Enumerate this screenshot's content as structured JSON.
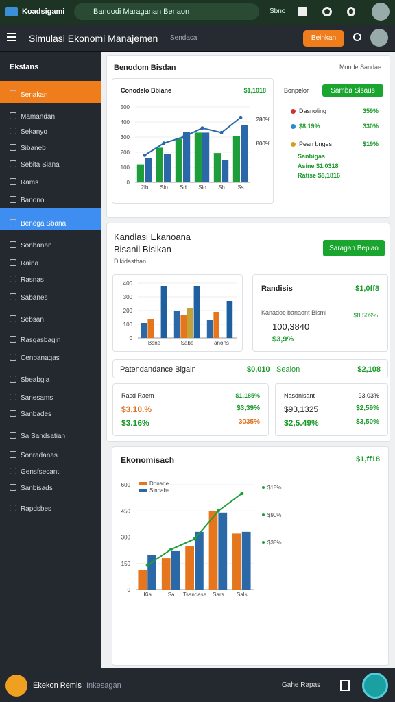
{
  "topbar": {
    "app": "Koadsigami",
    "search": "Bandodi Maraganan Benaon",
    "menu": "Sbno"
  },
  "header": {
    "title": "Simulasi Ekonomi Manajemen",
    "subtitle": "Sendaca",
    "button": "Beinkan"
  },
  "sidebar": {
    "section": "Ekstans",
    "items": [
      "Senakan",
      "Mamandan",
      "Sekanyo",
      "Sibaneb",
      "Sebita Siana",
      "Rams",
      "Banono",
      "Benega Sbana",
      "Sonbanan",
      "Raina",
      "Rasnas",
      "Sabanes",
      "Sebsan",
      "Rasgasbagin",
      "Cenbanagas",
      "Sbeabgia",
      "Sanesams",
      "Sanbades",
      "Sa Sandsatian",
      "Sonradanas",
      "Gensfsecant",
      "Sanbisads",
      "Rapdsbes"
    ]
  },
  "overview": {
    "title": "Benodom Bisdan",
    "link": "Monde Sandae",
    "chart": {
      "title": "Conodelo Bbiane",
      "value": "$1,1018",
      "ylim": [
        0,
        500
      ],
      "yticks": [
        0,
        100,
        200,
        300,
        400,
        500
      ],
      "categories": [
        "2lb",
        "Sio",
        "Sd",
        "Sio",
        "Sh",
        "Ss"
      ],
      "series": [
        {
          "color": "#1e9e3a",
          "values": [
            120,
            230,
            290,
            330,
            195,
            305
          ]
        },
        {
          "color": "#2a68a8",
          "values": [
            160,
            190,
            335,
            330,
            150,
            380
          ]
        }
      ],
      "line": {
        "color": "#2a68a8",
        "values": [
          180,
          260,
          300,
          360,
          330,
          430
        ]
      },
      "annotations": [
        "280%",
        "800%"
      ]
    },
    "panel": {
      "title": "Bonpelor",
      "button": "Samba Sisaus",
      "rows": [
        [
          "Dasnoling",
          "359%"
        ],
        [
          "$8,19%",
          "330%"
        ],
        [
          "Pean bnges",
          "$19%"
        ]
      ],
      "notes": [
        "Sanbigas",
        "Asine $1,0318",
        "Ratise $8,1816"
      ]
    }
  },
  "analysis": {
    "title": "Kandlasi Ekanoana",
    "subtitle": "Bisanil Bisikan",
    "caption": "Dikidasthan",
    "button": "Saragan Bepiao",
    "chart": {
      "ylim": [
        0,
        400
      ],
      "yticks": [
        0,
        100,
        200,
        300,
        400
      ],
      "categories": [
        "Bsne",
        "Sabe",
        "Tanons"
      ],
      "series": [
        {
          "color": "#2a68a8",
          "values": [
            110,
            200,
            130
          ]
        },
        {
          "color": "#e6761e",
          "values": [
            140,
            170,
            190
          ]
        },
        {
          "color": "#c4a23a",
          "values": [
            0,
            220,
            0
          ]
        },
        {
          "color": "#1e5fa0",
          "values": [
            380,
            380,
            270
          ]
        }
      ]
    },
    "stats": {
      "title": "Randisis",
      "value": "$1,0ff8",
      "label": "Kanadoc banaont Bismi",
      "change": "$8,509%",
      "big": "100,3840",
      "small": "$3,9%"
    },
    "row": [
      "Patendandance Bigain",
      "$0,010",
      "Sealon",
      "$2,108"
    ],
    "left": {
      "title": "Rasd Raem",
      "head": "$1,185%",
      "rows": [
        [
          "$3,10.%",
          "$3,39%"
        ],
        [
          "$3.16%",
          "3035%"
        ]
      ]
    },
    "right": {
      "title": "Nasdnisant",
      "head": "93.03%",
      "rows": [
        [
          "$93,1325",
          "$2,59%"
        ],
        [
          "$2,5.49%",
          "$3,50%"
        ]
      ]
    }
  },
  "trend": {
    "title": "Ekonomisach",
    "value": "$1,ff18",
    "chart": {
      "ylim": [
        0,
        600
      ],
      "yticks": [
        0,
        150,
        300,
        450,
        600
      ],
      "categories": [
        "Kia",
        "Sa",
        "Tsandase",
        "Sars",
        "Sals"
      ],
      "series": [
        {
          "name": "Donade",
          "color": "#e6761e",
          "values": [
            110,
            180,
            250,
            450,
            320
          ]
        },
        {
          "name": "Sinbabe",
          "color": "#2a68a8",
          "values": [
            200,
            220,
            330,
            440,
            330
          ]
        }
      ],
      "line": {
        "color": "#1e9e3a",
        "values": [
          140,
          230,
          290,
          450,
          550
        ]
      },
      "annotations": [
        "$18%",
        "$90%",
        "$38%"
      ]
    }
  },
  "bottombar": {
    "brand": "Ekekon Remis",
    "sub": "Inkesagan",
    "menu": "Gahe Rapas"
  }
}
